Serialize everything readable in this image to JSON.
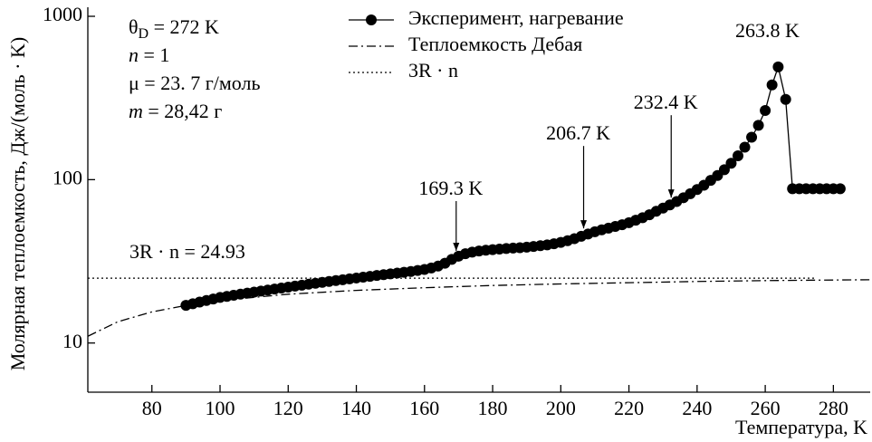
{
  "chart_data": {
    "type": "line",
    "x_label": "Температура, K",
    "y_label": "Молярная теплоемкость, Дж/(моль · K)",
    "xlim": [
      61.2,
      290.8
    ],
    "ylim": [
      5,
      1000
    ],
    "log_y": true,
    "xticks": [
      80,
      100,
      120,
      140,
      160,
      180,
      200,
      220,
      240,
      260,
      280
    ],
    "yticks": [
      10,
      100,
      1000
    ],
    "legend": "upper center",
    "params": [
      {
        "symbol": "θ",
        "sub": "D",
        "text": " = 272 K"
      },
      {
        "symbol": "n",
        "text": " = 1"
      },
      {
        "symbol": "μ",
        "text": " = 23. 7 г/моль"
      },
      {
        "symbol": "m",
        "text": " = 28,42 г"
      }
    ],
    "line_annotation": "3R · n = 24.93",
    "annotations": [
      {
        "text": "169.3 K",
        "x": 169.3,
        "y": 33.5
      },
      {
        "text": "206.7 K",
        "x": 206.7,
        "y": 46
      },
      {
        "text": "232.4 K",
        "x": 232.4,
        "y": 71
      },
      {
        "text": "263.8 K",
        "x": 263.8,
        "y": 490
      }
    ],
    "series": [
      {
        "name": "Эксперимент, нагревание",
        "color": "#000000",
        "style": "marker-line",
        "x": [
          90,
          92,
          94,
          96,
          98,
          100,
          102,
          104,
          106,
          108,
          110,
          112,
          114,
          116,
          118,
          120,
          122,
          124,
          126,
          128,
          130,
          132,
          134,
          136,
          138,
          140,
          142,
          144,
          146,
          148,
          150,
          152,
          154,
          156,
          158,
          160,
          162,
          164,
          166,
          168,
          170,
          172,
          174,
          176,
          178,
          180,
          182,
          184,
          186,
          188,
          190,
          192,
          194,
          196,
          198,
          200,
          202,
          204,
          206,
          208,
          210,
          212,
          214,
          216,
          218,
          220,
          222,
          224,
          226,
          228,
          230,
          232,
          234,
          236,
          238,
          240,
          242,
          244,
          246,
          248,
          250,
          252,
          254,
          256,
          258,
          260,
          262,
          263.8,
          266,
          268,
          270,
          272,
          274,
          276,
          278,
          280,
          282
        ],
        "values": [
          17.0,
          17.4,
          17.8,
          18.2,
          18.6,
          19.0,
          19.3,
          19.6,
          19.9,
          20.2,
          20.5,
          20.8,
          21.1,
          21.4,
          21.7,
          22.0,
          22.3,
          22.6,
          22.9,
          23.2,
          23.5,
          23.8,
          24.1,
          24.4,
          24.7,
          25.0,
          25.3,
          25.6,
          25.9,
          26.2,
          26.5,
          26.8,
          27.1,
          27.4,
          27.8,
          28.2,
          28.8,
          29.6,
          30.8,
          32.5,
          34.0,
          35.2,
          36.0,
          36.6,
          37.0,
          37.3,
          37.6,
          37.9,
          38.1,
          38.3,
          38.6,
          39.0,
          39.4,
          39.9,
          40.5,
          41.3,
          42.3,
          43.5,
          45.0,
          46.5,
          48.0,
          49.3,
          50.5,
          51.7,
          53.0,
          54.5,
          56.5,
          58.5,
          61.0,
          64.0,
          67.0,
          70.0,
          73.5,
          77.5,
          82.0,
          87.0,
          92.5,
          99.0,
          106,
          115,
          126,
          140,
          158,
          182,
          215,
          265,
          380,
          490,
          310,
          88,
          88,
          88,
          88,
          88,
          88,
          88,
          88
        ]
      },
      {
        "name": "Теплоемкость Дебая",
        "color": "#000000",
        "style": "dash-dot",
        "x": [
          61.2,
          70,
          80,
          90,
          100,
          120,
          140,
          160,
          180,
          200,
          220,
          240,
          260,
          280,
          290.8
        ],
        "values": [
          11.0,
          13.5,
          15.5,
          17.0,
          18.2,
          19.9,
          21.0,
          21.8,
          22.5,
          23.0,
          23.4,
          23.8,
          24.1,
          24.3,
          24.4
        ]
      },
      {
        "name": "3R · n",
        "color": "#000000",
        "style": "dotted",
        "x": [
          61.2,
          275
        ],
        "values": [
          24.93,
          24.93
        ]
      }
    ]
  }
}
